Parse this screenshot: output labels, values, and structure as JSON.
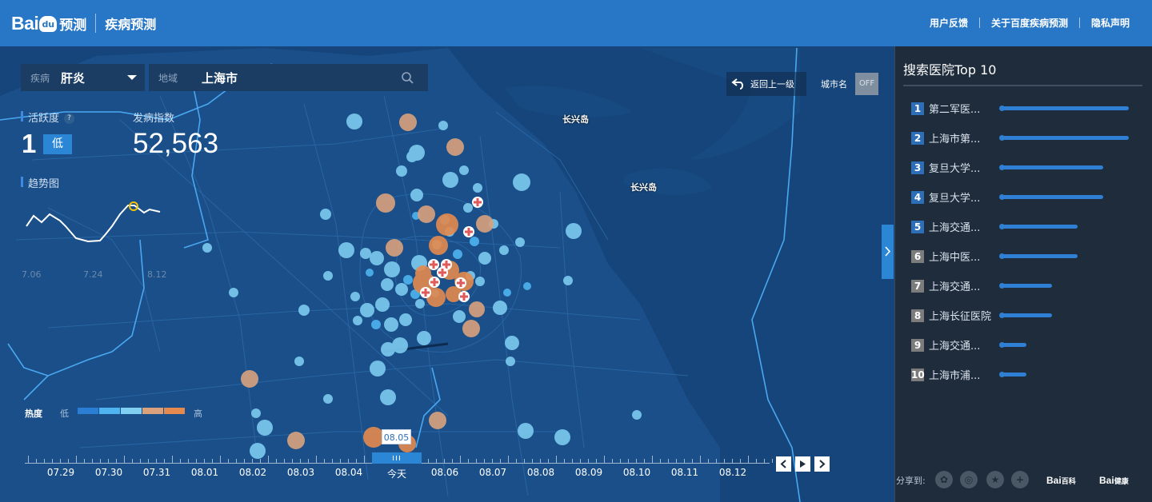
{
  "header": {
    "logo_left": "Bai",
    "logo_paw": "du",
    "logo_sub": "预测",
    "product": "疾病预测",
    "links": [
      "用户反馈",
      "关于百度疾病预测",
      "隐私声明"
    ]
  },
  "search": {
    "disease_label": "疾病",
    "disease_value": "肝炎",
    "region_label": "地域",
    "region_value": "上海市"
  },
  "map_controls": {
    "back_label": "返回上一级",
    "city_name_label": "城市名",
    "city_name_toggle": "OFF"
  },
  "map_labels": [
    "长兴岛",
    "长兴岛"
  ],
  "stats": {
    "activity_label": "活跃度",
    "activity_help": "?",
    "activity_value": "1",
    "activity_level": "低",
    "index_label": "发病指数",
    "index_value": "52,563",
    "trend_label": "趋势图",
    "trend_dates": [
      "7.06",
      "7.24",
      "8.12"
    ]
  },
  "heat_legend": {
    "title": "热度",
    "low": "低",
    "high": "高",
    "colors": [
      "#2a7fd4",
      "#4fb3f0",
      "#7fd0f0",
      "#d9a27d",
      "#e58a4e"
    ]
  },
  "timeline": {
    "dates": [
      "07.29",
      "07.30",
      "07.31",
      "08.01",
      "08.02",
      "08.03",
      "08.04",
      "今天",
      "08.06",
      "08.07",
      "08.08",
      "08.09",
      "08.10",
      "08.11",
      "08.12"
    ],
    "selected_tooltip": "08.05"
  },
  "panel": {
    "title": "搜索医院Top 10",
    "items": [
      {
        "rank": "1",
        "name": "第二军医...",
        "score": 1.0,
        "badge": "#2c6fb8"
      },
      {
        "rank": "2",
        "name": "上海市第...",
        "score": 1.0,
        "badge": "#2c6fb8"
      },
      {
        "rank": "3",
        "name": "复旦大学...",
        "score": 0.8,
        "badge": "#2c6fb8"
      },
      {
        "rank": "4",
        "name": "复旦大学...",
        "score": 0.8,
        "badge": "#2c6fb8"
      },
      {
        "rank": "5",
        "name": "上海交通...",
        "score": 0.6,
        "badge": "#2c6fb8"
      },
      {
        "rank": "6",
        "name": "上海中医...",
        "score": 0.6,
        "badge": "#7c7c7c"
      },
      {
        "rank": "7",
        "name": "上海交通...",
        "score": 0.4,
        "badge": "#7c7c7c"
      },
      {
        "rank": "8",
        "name": "上海长征医院",
        "score": 0.4,
        "badge": "#7c7c7c"
      },
      {
        "rank": "9",
        "name": "上海交通...",
        "score": 0.2,
        "badge": "#7c7c7c"
      },
      {
        "rank": "10",
        "name": "上海市浦...",
        "score": 0.2,
        "badge": "#7c7c7c"
      }
    ],
    "share_label": "分享到:",
    "brands": [
      {
        "main": "Bai",
        "sub": "百科"
      },
      {
        "main": "Bai",
        "sub": "健康"
      }
    ]
  },
  "colors": {
    "header": "#2877c6",
    "map": "#15457a",
    "panel": "#1e2c3b",
    "accent": "#2c86d6",
    "river": "#4aa8f0"
  }
}
